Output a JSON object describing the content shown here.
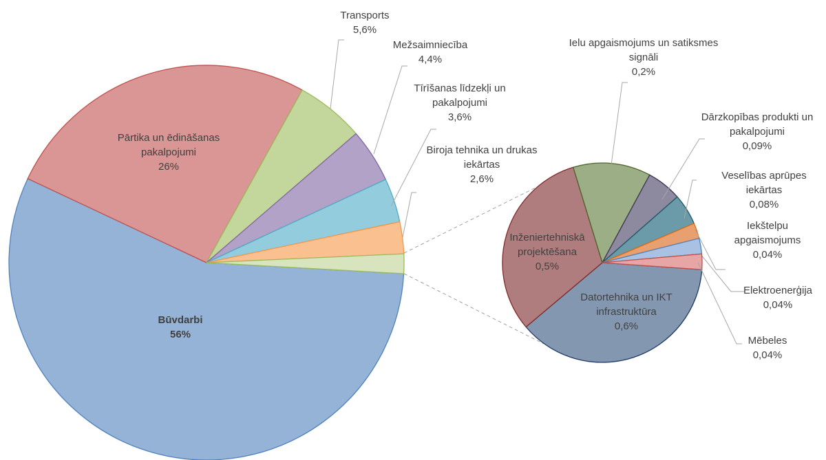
{
  "chart_data": [
    {
      "type": "pie",
      "categories": [
        "Būvdarbi",
        "Pārtika un ēdināšanas pakalpojumi",
        "Transports",
        "Mežsaimniecība",
        "Tīrīšanas līdzekļi un pakalpojumi",
        "Biroja tehnika un drukas iekārtas",
        null
      ],
      "values": [
        56,
        26,
        5.6,
        4.4,
        3.6,
        2.6,
        1.6
      ],
      "value_labels": [
        "56%",
        "26%",
        "5,6%",
        "4,4%",
        "3,6%",
        "2,6%",
        null
      ],
      "colors": [
        "#95b3d7",
        "#d99694",
        "#c3d69b",
        "#b3a2c7",
        "#93cddd",
        "#fac090",
        "#d7e4bd"
      ],
      "edge_colors": [
        "#4f81bd",
        "#c0504d",
        "#9bbb59",
        "#8064a2",
        "#4bacc6",
        "#f79646",
        "#9bbb59"
      ]
    },
    {
      "type": "pie",
      "categories": [
        "Datortehnika un IKT infrastruktūra",
        "Inženiertehniskā projektēšana",
        "Ielu apgaismojums un satiksmes signāli",
        "Dārzkopības produkti un pakalpojumi",
        "Veselības aprūpes iekārtas",
        "Iekštelpu apgaismojums",
        "Elektroenerģija",
        "Mēbeles"
      ],
      "values": [
        0.6,
        0.5,
        0.2,
        0.09,
        0.08,
        0.04,
        0.04,
        0.04
      ],
      "value_labels": [
        "0,6%",
        "0,5%",
        "0,2%",
        "0,09%",
        "0,08%",
        "0,04%",
        "0,04%",
        "0,04%"
      ],
      "colors": [
        "#8497b0",
        "#b07d7f",
        "#9bae85",
        "#8d8aa0",
        "#6b9aa8",
        "#e8a070",
        "#a9c2e4",
        "#e7a5a6"
      ],
      "edge_colors": [
        "#1f3864",
        "#7f2a28",
        "#4f6228",
        "#3f3151",
        "#215867",
        "#e46c0a",
        "#4f81bd",
        "#c0504d"
      ]
    }
  ]
}
